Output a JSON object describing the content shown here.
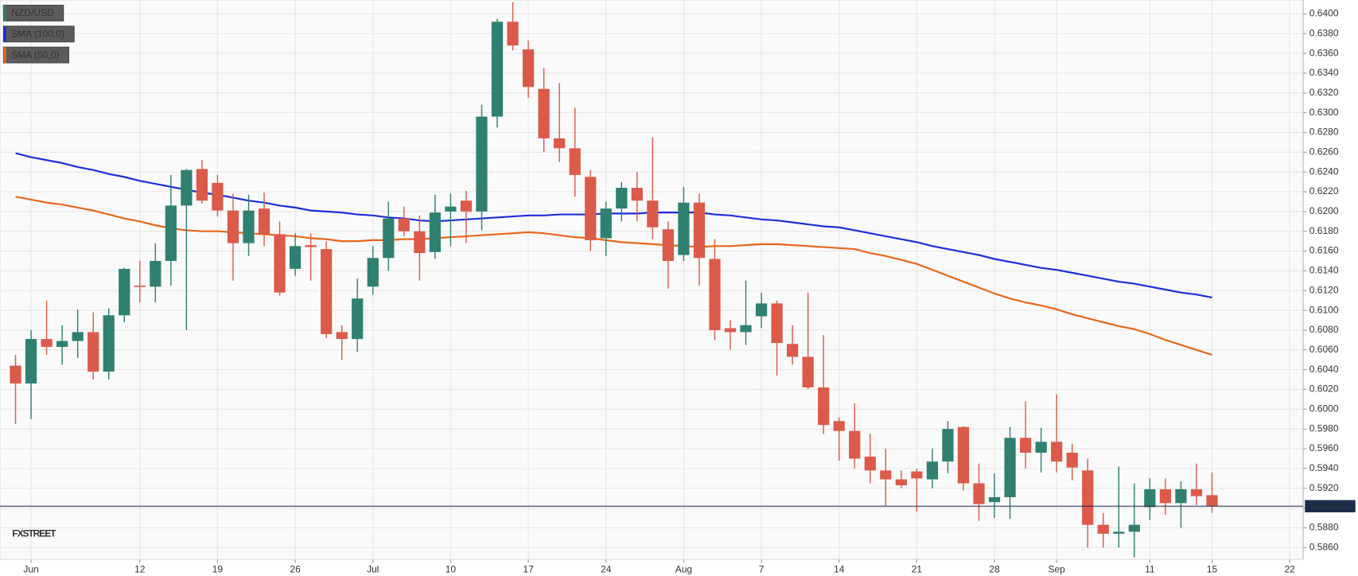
{
  "chart_data": {
    "type": "candlestick",
    "categories": [
      null,
      "Jun",
      null,
      null,
      null,
      null,
      null,
      null,
      "12",
      null,
      null,
      null,
      null,
      "19",
      null,
      null,
      null,
      null,
      "26",
      null,
      null,
      null,
      null,
      "Jul",
      null,
      null,
      null,
      null,
      "10",
      null,
      null,
      null,
      null,
      "17",
      null,
      null,
      null,
      null,
      "24",
      null,
      null,
      null,
      null,
      "Aug",
      null,
      null,
      null,
      null,
      "7",
      null,
      null,
      null,
      null,
      "14",
      null,
      null,
      null,
      null,
      "21",
      null,
      null,
      null,
      null,
      "28",
      null,
      null,
      null,
      "Sep",
      null,
      null,
      null,
      null,
      null,
      "11",
      null,
      null,
      null,
      "15",
      null,
      null,
      null,
      null,
      "22"
    ],
    "series": [
      {
        "name": "NZD/USD",
        "type": "candlestick",
        "up_color": "#2f8070",
        "down_color": "#db5a49",
        "open": [
          0.6044,
          0.6026,
          0.6071,
          0.6063,
          0.6069,
          0.6078,
          0.6038,
          0.6095,
          0.6125,
          0.6124,
          0.615,
          0.6206,
          0.6243,
          0.6229,
          0.6201,
          0.6168,
          0.6203,
          0.6177,
          0.6142,
          0.6166,
          0.6162,
          0.6078,
          0.6071,
          0.6124,
          0.6153,
          0.6193,
          0.618,
          0.6159,
          0.62,
          0.6211,
          0.62,
          0.6296,
          0.6392,
          0.6364,
          0.6324,
          0.6274,
          0.6264,
          0.6235,
          0.6173,
          0.6203,
          0.6224,
          0.6211,
          0.6182,
          0.6156,
          0.6209,
          0.6152,
          0.6082,
          0.6078,
          0.6094,
          0.6107,
          0.6066,
          0.6053,
          0.6022,
          0.5988,
          0.5978,
          0.5952,
          0.5938,
          0.5929,
          0.5937,
          0.5929,
          0.5947,
          0.5982,
          0.5925,
          0.5906,
          0.5911,
          0.5971,
          0.5956,
          0.5967,
          0.5956,
          0.5938,
          0.5883,
          0.5874,
          0.5876,
          0.5901,
          0.5919,
          0.5905,
          0.5919,
          0.5913,
          null,
          null,
          null,
          null,
          null
        ],
        "high": [
          0.6055,
          0.608,
          0.611,
          0.6085,
          0.6101,
          0.6098,
          0.6102,
          0.6143,
          0.615,
          0.6168,
          0.6237,
          0.6243,
          0.6252,
          0.6237,
          0.6218,
          0.6217,
          0.6219,
          0.619,
          0.6178,
          0.6178,
          0.617,
          0.6085,
          0.6132,
          0.6165,
          0.621,
          0.6205,
          0.6196,
          0.6217,
          0.6218,
          0.6221,
          0.6308,
          0.6395,
          0.6412,
          0.6373,
          0.6345,
          0.633,
          0.6305,
          0.6242,
          0.621,
          0.623,
          0.624,
          0.6275,
          0.619,
          0.6225,
          0.6218,
          0.6172,
          0.609,
          0.613,
          0.6118,
          0.611,
          0.6085,
          0.6118,
          0.6075,
          0.5992,
          0.6006,
          0.5975,
          0.596,
          0.5938,
          0.594,
          0.596,
          0.5988,
          0.5983,
          0.5945,
          0.5935,
          0.5982,
          0.6008,
          0.5981,
          0.6015,
          0.5965,
          0.595,
          0.5895,
          0.5942,
          0.5925,
          0.593,
          0.593,
          0.5927,
          0.5945,
          0.5936,
          null,
          null,
          null,
          null,
          null
        ],
        "low": [
          0.5985,
          0.599,
          0.6055,
          0.6045,
          0.6052,
          0.603,
          0.603,
          0.6088,
          0.6108,
          0.6108,
          0.6125,
          0.608,
          0.6208,
          0.6195,
          0.613,
          0.6155,
          0.6165,
          0.6115,
          0.6135,
          0.613,
          0.6072,
          0.605,
          0.6058,
          0.6116,
          0.614,
          0.6175,
          0.613,
          0.6152,
          0.6165,
          0.6168,
          0.6181,
          0.6285,
          0.6363,
          0.6315,
          0.626,
          0.625,
          0.6215,
          0.616,
          0.6155,
          0.619,
          0.619,
          0.6172,
          0.6122,
          0.615,
          0.6125,
          0.607,
          0.606,
          0.6065,
          0.6082,
          0.6034,
          0.6045,
          0.602,
          0.5975,
          0.5948,
          0.594,
          0.5925,
          0.5902,
          0.592,
          0.5896,
          0.592,
          0.5935,
          0.5918,
          0.5887,
          0.589,
          0.5889,
          0.594,
          0.5936,
          0.5936,
          0.5928,
          0.586,
          0.586,
          0.586,
          0.585,
          0.5888,
          0.5893,
          0.588,
          0.5903,
          0.5895,
          null,
          null,
          null,
          null,
          null
        ],
        "close": [
          0.6026,
          0.6071,
          0.6063,
          0.6069,
          0.6078,
          0.6038,
          0.6095,
          0.6142,
          0.6124,
          0.615,
          0.6206,
          0.6242,
          0.6211,
          0.6201,
          0.6168,
          0.6201,
          0.6177,
          0.6118,
          0.6165,
          0.6164,
          0.6076,
          0.6071,
          0.6112,
          0.6153,
          0.6193,
          0.618,
          0.6158,
          0.6199,
          0.6205,
          0.62,
          0.6296,
          0.6392,
          0.6368,
          0.6326,
          0.6274,
          0.6264,
          0.6237,
          0.6171,
          0.6203,
          0.6224,
          0.6211,
          0.6184,
          0.615,
          0.6209,
          0.6153,
          0.608,
          0.6078,
          0.6085,
          0.6107,
          0.6067,
          0.6053,
          0.6022,
          0.5984,
          0.5978,
          0.595,
          0.5938,
          0.5929,
          0.5923,
          0.593,
          0.5947,
          0.598,
          0.5925,
          0.5904,
          0.5911,
          0.5971,
          0.5956,
          0.5967,
          0.5947,
          0.5941,
          0.5883,
          0.5874,
          0.5876,
          0.5883,
          0.5919,
          0.5905,
          0.5919,
          0.5912,
          0.5902,
          null,
          null,
          null,
          null,
          null
        ]
      },
      {
        "name": "SMA (100,0)",
        "type": "line",
        "color": "#1d2ed8",
        "values": [
          0.6259,
          0.6255,
          0.6252,
          0.6249,
          0.6245,
          0.6242,
          0.6238,
          0.6235,
          0.6231,
          0.6228,
          0.6225,
          0.6222,
          0.6219,
          0.6217,
          0.6214,
          0.6211,
          0.6209,
          0.6206,
          0.6204,
          0.6201,
          0.62,
          0.6199,
          0.6197,
          0.6196,
          0.6194,
          0.6193,
          0.6191,
          0.619,
          0.6191,
          0.6192,
          0.6193,
          0.6194,
          0.6195,
          0.6196,
          0.6196,
          0.6197,
          0.6197,
          0.6197,
          0.6198,
          0.6198,
          0.6198,
          0.6199,
          0.6199,
          0.6199,
          0.6199,
          0.6197,
          0.6196,
          0.6194,
          0.6192,
          0.6191,
          0.6189,
          0.6187,
          0.6185,
          0.6184,
          0.6181,
          0.6178,
          0.6175,
          0.6172,
          0.6169,
          0.6165,
          0.6162,
          0.6159,
          0.6156,
          0.6152,
          0.6149,
          0.6146,
          0.6143,
          0.6141,
          0.6138,
          0.6135,
          0.6132,
          0.6129,
          0.6127,
          0.6124,
          0.6121,
          0.6118,
          0.6116,
          0.6113,
          null,
          null,
          null,
          null,
          null
        ]
      },
      {
        "name": "SMA (50,0)",
        "type": "line",
        "color": "#e8661a",
        "values": [
          0.6215,
          0.6212,
          0.6209,
          0.6207,
          0.6204,
          0.6201,
          0.6197,
          0.6193,
          0.619,
          0.6186,
          0.6183,
          0.6181,
          0.618,
          0.618,
          0.6179,
          0.6178,
          0.6177,
          0.6176,
          0.6175,
          0.6173,
          0.6172,
          0.617,
          0.617,
          0.6171,
          0.6171,
          0.6172,
          0.6172,
          0.6173,
          0.6174,
          0.6175,
          0.6176,
          0.6177,
          0.6178,
          0.6179,
          0.6178,
          0.6176,
          0.6174,
          0.6173,
          0.6171,
          0.6169,
          0.6168,
          0.6167,
          0.6166,
          0.6165,
          0.6164,
          0.6165,
          0.6165,
          0.6166,
          0.6167,
          0.6167,
          0.6166,
          0.6165,
          0.6164,
          0.6163,
          0.6162,
          0.6158,
          0.6155,
          0.6151,
          0.6147,
          0.6141,
          0.6135,
          0.6129,
          0.6123,
          0.6117,
          0.6112,
          0.6108,
          0.6105,
          0.6101,
          0.6096,
          0.6092,
          0.6088,
          0.6084,
          0.6081,
          0.6076,
          0.607,
          0.6065,
          0.606,
          0.6055,
          null,
          null,
          null,
          null,
          null
        ]
      }
    ],
    "ylim": [
      0.5848,
      0.6414
    ],
    "yticks": [
      {
        "value": 0.586,
        "label": "0.5860"
      },
      {
        "value": 0.588,
        "label": "0.5880"
      },
      {
        "value": 0.59,
        "label": "0.5900"
      },
      {
        "value": 0.592,
        "label": "0.5920"
      },
      {
        "value": 0.594,
        "label": "0.5940"
      },
      {
        "value": 0.596,
        "label": "0.5960"
      },
      {
        "value": 0.598,
        "label": "0.5980"
      },
      {
        "value": 0.6,
        "label": "0.6000"
      },
      {
        "value": 0.602,
        "label": "0.6020"
      },
      {
        "value": 0.604,
        "label": "0.6040"
      },
      {
        "value": 0.606,
        "label": "0.6060"
      },
      {
        "value": 0.608,
        "label": "0.6080"
      },
      {
        "value": 0.61,
        "label": "0.6100"
      },
      {
        "value": 0.612,
        "label": "0.6120"
      },
      {
        "value": 0.614,
        "label": "0.6140"
      },
      {
        "value": 0.616,
        "label": "0.6160"
      },
      {
        "value": 0.618,
        "label": "0.6180"
      },
      {
        "value": 0.62,
        "label": "0.6200"
      },
      {
        "value": 0.622,
        "label": "0.6220"
      },
      {
        "value": 0.624,
        "label": "0.6240"
      },
      {
        "value": 0.626,
        "label": "0.6260"
      },
      {
        "value": 0.628,
        "label": "0.6280"
      },
      {
        "value": 0.63,
        "label": "0.6300"
      },
      {
        "value": 0.632,
        "label": "0.6320"
      },
      {
        "value": 0.634,
        "label": "0.6340"
      },
      {
        "value": 0.636,
        "label": "0.6360"
      },
      {
        "value": 0.638,
        "label": "0.6380"
      },
      {
        "value": 0.64,
        "label": "0.6400"
      }
    ],
    "grid": true,
    "last_price": {
      "value": 0.590185,
      "label": "0.590185",
      "color": "#1b2b4b"
    },
    "watermark": "FXSTREET",
    "legend": "upper left"
  }
}
